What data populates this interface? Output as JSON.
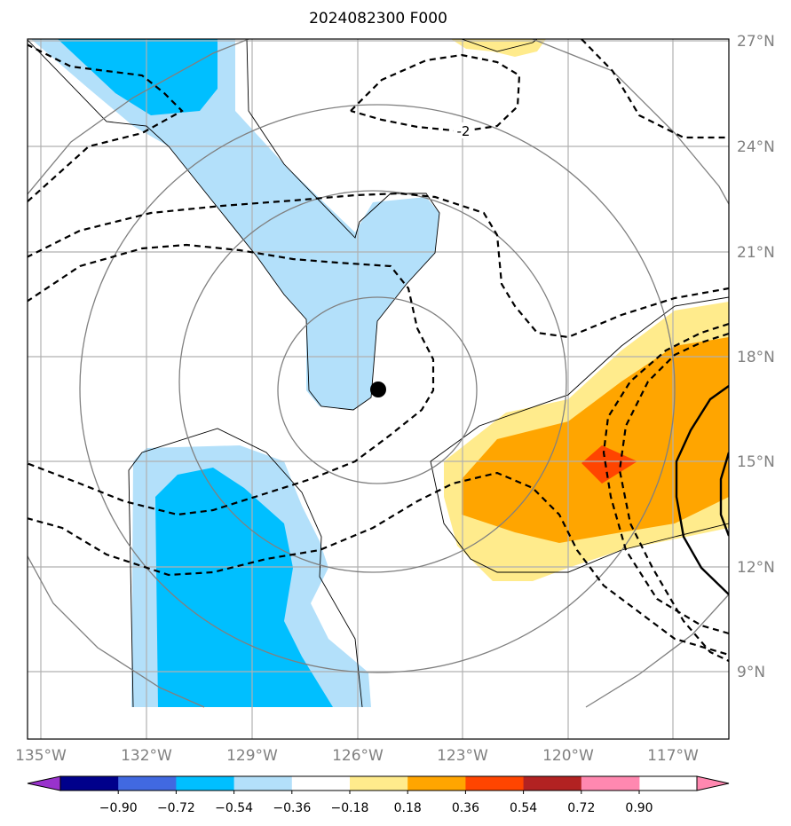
{
  "title": "2024082300 F000",
  "map": {
    "lat_labels": [
      "27°N",
      "24°N",
      "21°N",
      "18°N",
      "15°N",
      "12°N",
      "9°N"
    ],
    "lon_labels": [
      "135°W",
      "132°W",
      "129°W",
      "126°W",
      "123°W",
      "120°W",
      "117°W"
    ],
    "contour_label": "-2",
    "storm_center_marker": "filled black circle",
    "fill_colors": {
      "light_blue": "#b3e0fa",
      "blue": "#00bfff",
      "light_yellow": "#ffeb8c",
      "orange": "#ffa500",
      "red_orange": "#ff4500"
    }
  },
  "colorbar": {
    "tick_labels": [
      "−0.90",
      "−0.72",
      "−0.54",
      "−0.36",
      "−0.18",
      "0.18",
      "0.36",
      "0.54",
      "0.72",
      "0.90"
    ],
    "colors": [
      "#9932cc",
      "#00008b",
      "#4169e1",
      "#00bfff",
      "#b3e0fa",
      "#ffffff",
      "#ffeb8c",
      "#ffa500",
      "#ff4500",
      "#b22222",
      "#ff88b0",
      "#ff88b0"
    ],
    "extend": "both"
  }
}
